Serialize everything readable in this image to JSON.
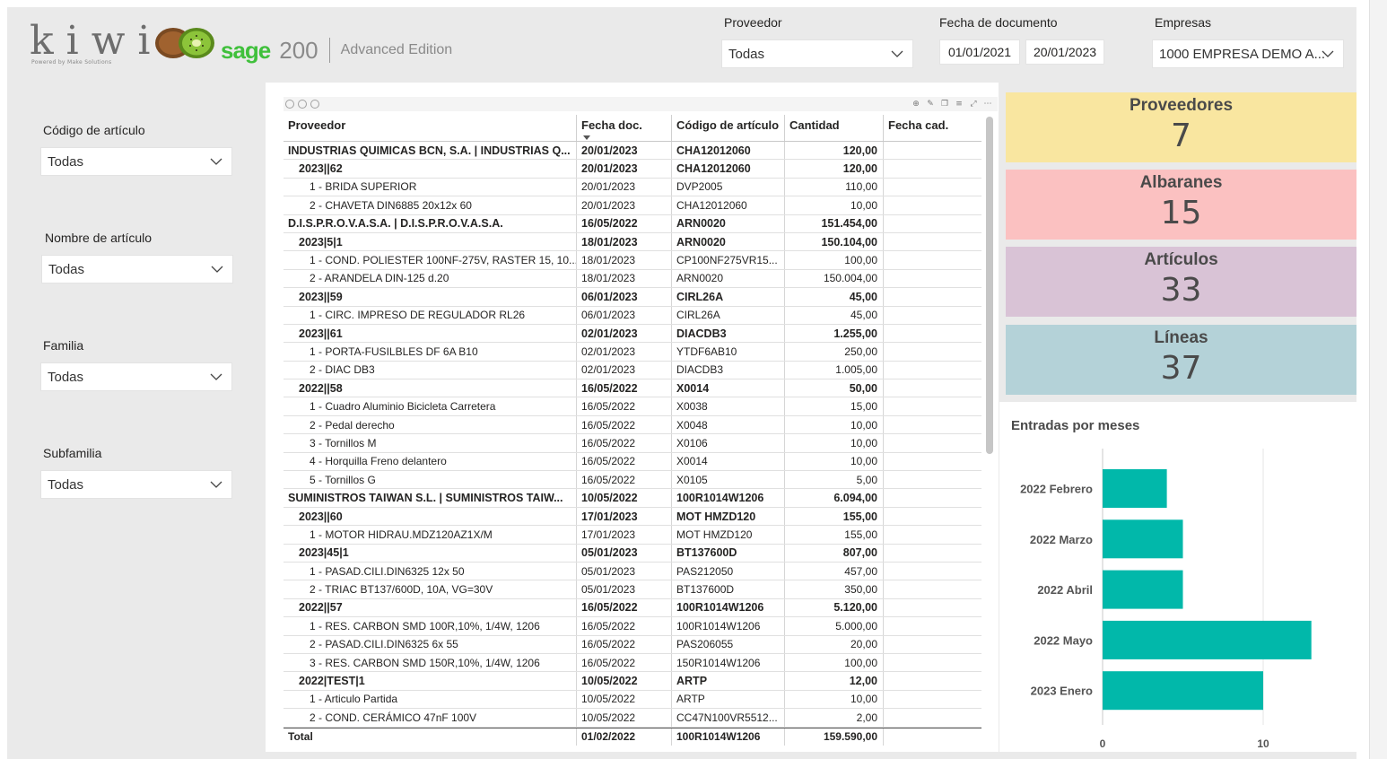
{
  "header": {
    "kiwi_logo_text": "kiwi",
    "kiwi_logo_sub": "Powered by Make Solutions",
    "sage_word": "sage",
    "sage_version": "200",
    "sage_edition": "Advanced Edition"
  },
  "filters_top": {
    "proveedor_label": "Proveedor",
    "proveedor_value": "Todas",
    "fecha_label": "Fecha de documento",
    "fecha_from": "01/01/2021",
    "fecha_to": "20/01/2023",
    "empresas_label": "Empresas",
    "empresas_value": "1000 EMPRESA DEMO A..."
  },
  "filters_left": [
    {
      "label": "Código de artículo",
      "value": "Todas"
    },
    {
      "label": "Nombre de artículo",
      "value": "Todas"
    },
    {
      "label": "Familia",
      "value": "Todas"
    },
    {
      "label": "Subfamilia",
      "value": "Todas"
    }
  ],
  "table": {
    "columns": [
      "Proveedor",
      "Fecha doc.",
      "Código de artículo",
      "Cantidad",
      "Fecha cad."
    ],
    "rows": [
      {
        "level": 0,
        "name": "INDUSTRIAS QUIMICAS BCN, S.A. | INDUSTRIAS Q...",
        "fecha": "20/01/2023",
        "codigo": "CHA12012060",
        "cantidad": "120,00",
        "cad": ""
      },
      {
        "level": 1,
        "name": "2023||62",
        "fecha": "20/01/2023",
        "codigo": "CHA12012060",
        "cantidad": "120,00",
        "cad": ""
      },
      {
        "level": 2,
        "name": "1 - BRIDA SUPERIOR",
        "fecha": "20/01/2023",
        "codigo": "DVP2005",
        "cantidad": "110,00",
        "cad": ""
      },
      {
        "level": 2,
        "name": "2 - CHAVETA DIN6885 20x12x 60",
        "fecha": "20/01/2023",
        "codigo": "CHA12012060",
        "cantidad": "10,00",
        "cad": ""
      },
      {
        "level": 0,
        "name": "D.I.S.P.R.O.V.A.S.A. | D.I.S.P.R.O.V.A.S.A.",
        "fecha": "16/05/2022",
        "codigo": "ARN0020",
        "cantidad": "151.454,00",
        "cad": ""
      },
      {
        "level": 1,
        "name": "2023|5|1",
        "fecha": "18/01/2023",
        "codigo": "ARN0020",
        "cantidad": "150.104,00",
        "cad": ""
      },
      {
        "level": 2,
        "name": "1 - COND. POLIESTER 100NF-275V, RASTER 15, 10...",
        "fecha": "18/01/2023",
        "codigo": "CP100NF275VR15...",
        "cantidad": "100,00",
        "cad": ""
      },
      {
        "level": 2,
        "name": "2 - ARANDELA DIN-125 d.20",
        "fecha": "18/01/2023",
        "codigo": "ARN0020",
        "cantidad": "150.004,00",
        "cad": ""
      },
      {
        "level": 1,
        "name": "2023||59",
        "fecha": "06/01/2023",
        "codigo": "CIRL26A",
        "cantidad": "45,00",
        "cad": ""
      },
      {
        "level": 2,
        "name": "1 - CIRC. IMPRESO DE REGULADOR RL26",
        "fecha": "06/01/2023",
        "codigo": "CIRL26A",
        "cantidad": "45,00",
        "cad": ""
      },
      {
        "level": 1,
        "name": "2023||61",
        "fecha": "02/01/2023",
        "codigo": "DIACDB3",
        "cantidad": "1.255,00",
        "cad": ""
      },
      {
        "level": 2,
        "name": "1 - PORTA-FUSILBLES DF 6A B10",
        "fecha": "02/01/2023",
        "codigo": "YTDF6AB10",
        "cantidad": "250,00",
        "cad": ""
      },
      {
        "level": 2,
        "name": "2 - DIAC DB3",
        "fecha": "02/01/2023",
        "codigo": "DIACDB3",
        "cantidad": "1.005,00",
        "cad": ""
      },
      {
        "level": 1,
        "name": "2022||58",
        "fecha": "16/05/2022",
        "codigo": "X0014",
        "cantidad": "50,00",
        "cad": ""
      },
      {
        "level": 2,
        "name": "1 - Cuadro Aluminio Bicicleta Carretera",
        "fecha": "16/05/2022",
        "codigo": "X0038",
        "cantidad": "15,00",
        "cad": ""
      },
      {
        "level": 2,
        "name": "2 - Pedal derecho",
        "fecha": "16/05/2022",
        "codigo": "X0048",
        "cantidad": "10,00",
        "cad": ""
      },
      {
        "level": 2,
        "name": "3 - Tornillos M",
        "fecha": "16/05/2022",
        "codigo": "X0106",
        "cantidad": "10,00",
        "cad": ""
      },
      {
        "level": 2,
        "name": "4 - Horquilla Freno delantero",
        "fecha": "16/05/2022",
        "codigo": "X0014",
        "cantidad": "10,00",
        "cad": ""
      },
      {
        "level": 2,
        "name": "5 - Tornillos G",
        "fecha": "16/05/2022",
        "codigo": "X0105",
        "cantidad": "5,00",
        "cad": ""
      },
      {
        "level": 0,
        "name": "SUMINISTROS TAIWAN S.L. | SUMINISTROS TAIW...",
        "fecha": "10/05/2022",
        "codigo": "100R1014W1206",
        "cantidad": "6.094,00",
        "cad": ""
      },
      {
        "level": 1,
        "name": "2023||60",
        "fecha": "17/01/2023",
        "codigo": "MOT HMZD120",
        "cantidad": "155,00",
        "cad": ""
      },
      {
        "level": 2,
        "name": "1 - MOTOR HIDRAU.MDZ120AZ1X/M",
        "fecha": "17/01/2023",
        "codigo": "MOT HMZD120",
        "cantidad": "155,00",
        "cad": ""
      },
      {
        "level": 1,
        "name": "2023|45|1",
        "fecha": "05/01/2023",
        "codigo": "BT137600D",
        "cantidad": "807,00",
        "cad": ""
      },
      {
        "level": 2,
        "name": "1 - PASAD.CILI.DIN6325 12x 50",
        "fecha": "05/01/2023",
        "codigo": "PAS212050",
        "cantidad": "457,00",
        "cad": ""
      },
      {
        "level": 2,
        "name": "2 - TRIAC BT137/600D, 10A, VG=30V",
        "fecha": "05/01/2023",
        "codigo": "BT137600D",
        "cantidad": "350,00",
        "cad": ""
      },
      {
        "level": 1,
        "name": "2022||57",
        "fecha": "16/05/2022",
        "codigo": "100R1014W1206",
        "cantidad": "5.120,00",
        "cad": ""
      },
      {
        "level": 2,
        "name": "1 - RES. CARBON SMD 100R,10%, 1/4W, 1206",
        "fecha": "16/05/2022",
        "codigo": "100R1014W1206",
        "cantidad": "5.000,00",
        "cad": ""
      },
      {
        "level": 2,
        "name": "2 - PASAD.CILI.DIN6325  6x 55",
        "fecha": "16/05/2022",
        "codigo": "PAS206055",
        "cantidad": "20,00",
        "cad": ""
      },
      {
        "level": 2,
        "name": "3 - RES. CARBON SMD 150R,10%, 1/4W, 1206",
        "fecha": "16/05/2022",
        "codigo": "150R1014W1206",
        "cantidad": "100,00",
        "cad": ""
      },
      {
        "level": 1,
        "name": "2022|TEST|1",
        "fecha": "10/05/2022",
        "codigo": "ARTP",
        "cantidad": "12,00",
        "cad": ""
      },
      {
        "level": 2,
        "name": "1 - Articulo Partida",
        "fecha": "10/05/2022",
        "codigo": "ARTP",
        "cantidad": "10,00",
        "cad": ""
      },
      {
        "level": 2,
        "name": "2 - COND. CERÁMICO 47nF 100V",
        "fecha": "10/05/2022",
        "codigo": "CC47N100VR5512...",
        "cantidad": "2,00",
        "cad": ""
      }
    ],
    "total": {
      "name": "Total",
      "fecha": "01/02/2022",
      "codigo": "100R1014W1206",
      "cantidad": "159.590,00",
      "cad": ""
    }
  },
  "kpis": [
    {
      "title": "Proveedores",
      "value": "7",
      "color": "#f9e6a0"
    },
    {
      "title": "Albaranes",
      "value": "15",
      "color": "#fbc1c1"
    },
    {
      "title": "Artículos",
      "value": "33",
      "color": "#d9c3d6"
    },
    {
      "title": "Líneas",
      "value": "37",
      "color": "#b4d2d8"
    }
  ],
  "chart_data": {
    "type": "bar",
    "orientation": "horizontal",
    "title": "Entradas por meses",
    "categories": [
      "2022 Febrero",
      "2022 Marzo",
      "2022 Abril",
      "2022 Mayo",
      "2023 Enero"
    ],
    "values": [
      4,
      5,
      5,
      13,
      10
    ],
    "xlim": [
      0,
      13
    ],
    "ticks": [
      0,
      10
    ],
    "color": "#01b8aa",
    "grid": true
  }
}
